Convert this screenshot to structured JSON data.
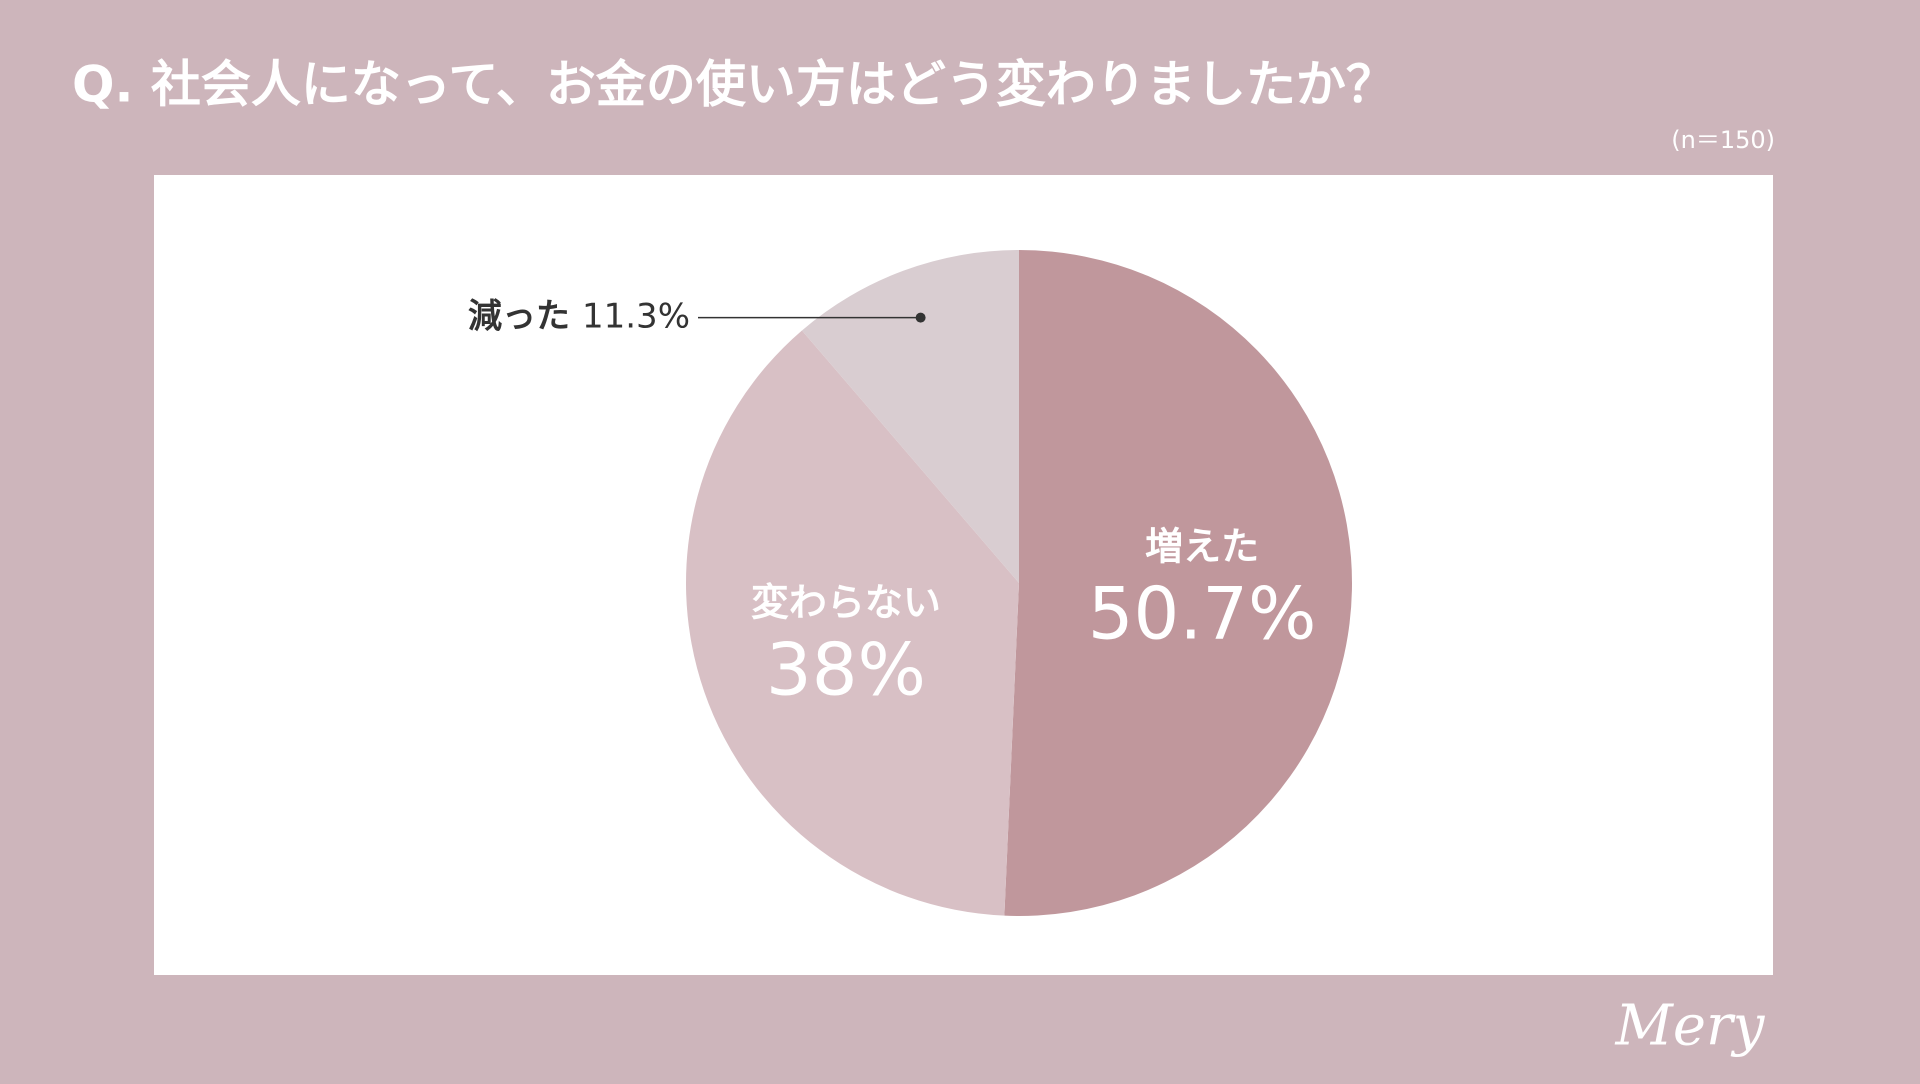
{
  "chart_data": {
    "type": "pie",
    "title": "Q. 社会人になって、お金の使い方はどう変わりましたか？",
    "subtitle": "(n＝150)",
    "categories": [
      "増えた",
      "変わらない",
      "減った"
    ],
    "values": [
      50.7,
      38,
      11.3
    ],
    "value_labels": [
      "50.7%",
      "38%",
      "11.3%"
    ],
    "colors": [
      "#c0979c",
      "#d8c0c5",
      "#d9cdd1"
    ]
  },
  "brand": "Mery"
}
